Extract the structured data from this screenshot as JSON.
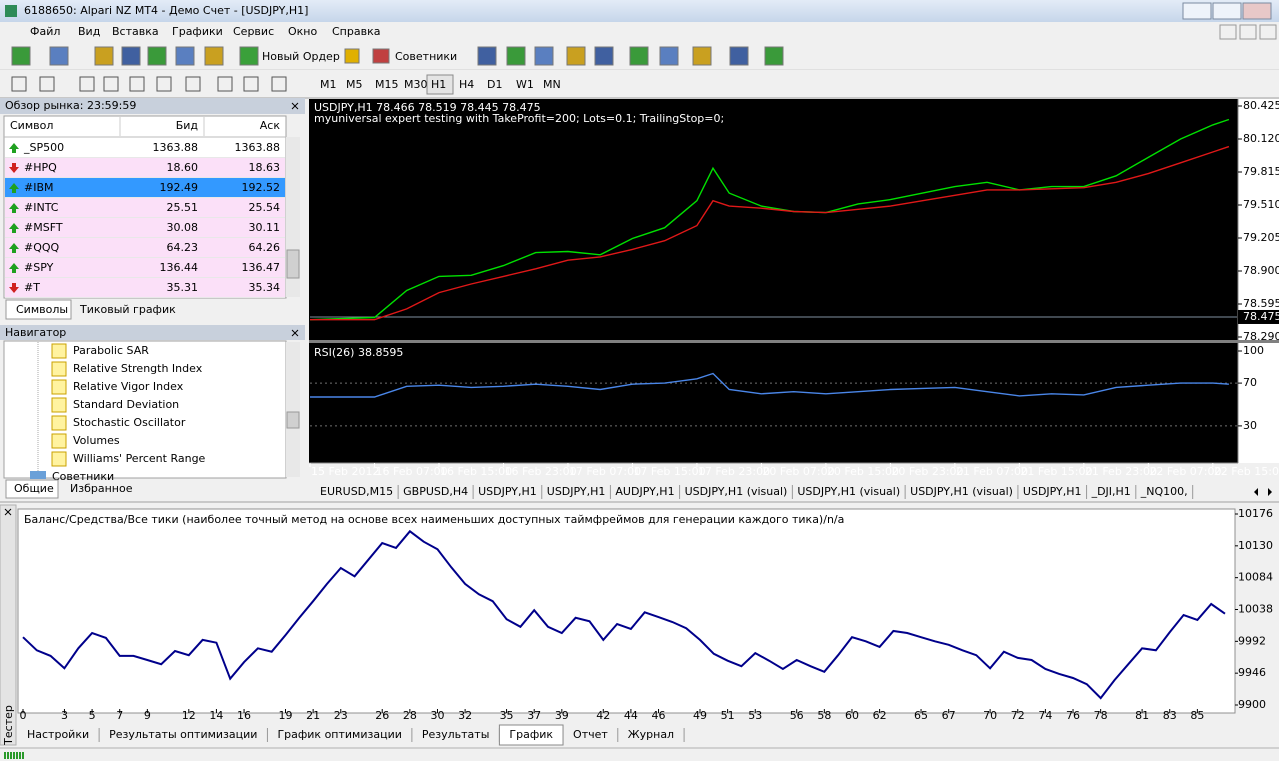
{
  "window": {
    "title": "6188650: Alpari NZ MT4 - Демо Счет - [USDJPY,H1]"
  },
  "menu": [
    "Файл",
    "Вид",
    "Вставка",
    "Графики",
    "Сервис",
    "Окно",
    "Справка"
  ],
  "toolbar": {
    "new_order": "Новый Ордер",
    "experts": "Советники",
    "timeframes": [
      "M1",
      "M5",
      "M15",
      "M30",
      "H1",
      "H4",
      "D1",
      "W1",
      "MN"
    ],
    "active_timeframe": "H1"
  },
  "market_watch": {
    "title": "Обзор рынка: 23:59:59",
    "columns": [
      "Символ",
      "Бид",
      "Аск"
    ],
    "rows": [
      {
        "symbol": "_SP500",
        "bid": "1363.88",
        "ask": "1363.88",
        "dir": "up",
        "muted": true
      },
      {
        "symbol": "#HPQ",
        "bid": "18.60",
        "ask": "18.63",
        "dir": "down"
      },
      {
        "symbol": "#IBM",
        "bid": "192.49",
        "ask": "192.52",
        "dir": "up",
        "selected": true
      },
      {
        "symbol": "#INTC",
        "bid": "25.51",
        "ask": "25.54",
        "dir": "up"
      },
      {
        "symbol": "#MSFT",
        "bid": "30.08",
        "ask": "30.11",
        "dir": "up"
      },
      {
        "symbol": "#QQQ",
        "bid": "64.23",
        "ask": "64.26",
        "dir": "up"
      },
      {
        "symbol": "#SPY",
        "bid": "136.44",
        "ask": "136.47",
        "dir": "up"
      },
      {
        "symbol": "#T",
        "bid": "35.31",
        "ask": "35.34",
        "dir": "down"
      }
    ],
    "tabs": [
      "Символы",
      "Тиковый график"
    ]
  },
  "navigator": {
    "title": "Навигатор",
    "items": [
      "Parabolic SAR",
      "Relative Strength Index",
      "Relative Vigor Index",
      "Standard Deviation",
      "Stochastic Oscillator",
      "Volumes",
      "Williams' Percent Range"
    ],
    "folder": "Советники",
    "tabs": [
      "Общие",
      "Избранное"
    ]
  },
  "chart_tabs": [
    "EURUSD,M15",
    "GBPUSD,H4",
    "USDJPY,H1",
    "USDJPY,H1",
    "AUDJPY,H1",
    "USDJPY,H1 (visual)",
    "USDJPY,H1 (visual)",
    "USDJPY,H1 (visual)",
    "USDJPY,H1",
    "_DJI,H1",
    "_NQ100,"
  ],
  "tester": {
    "label": "Тестер",
    "tabs": [
      "Настройки",
      "Результаты оптимизации",
      "График оптимизации",
      "Результаты",
      "График",
      "Отчет",
      "Журнал"
    ],
    "active_tab": "График"
  },
  "chart_data": [
    {
      "type": "line",
      "title": "USDJPY,H1  78.466 78.519 78.445 78.475",
      "subtitle": "myuniversal expert testing with TakeProfit=200; Lots=0.1; TrailingStop=0;",
      "x": [
        0,
        4,
        8,
        12,
        16,
        20,
        24,
        28,
        32,
        36,
        40,
        44,
        48,
        50,
        52,
        56,
        60,
        64,
        68,
        72,
        76,
        80,
        84,
        88,
        92,
        96,
        100,
        104,
        108,
        112,
        114
      ],
      "xlim": [
        0,
        115
      ],
      "xticks": [
        {
          "value": 0,
          "label": "15 Feb 2012"
        },
        {
          "value": 8,
          "label": "16 Feb 07:00"
        },
        {
          "value": 16,
          "label": "16 Feb 15:00"
        },
        {
          "value": 24,
          "label": "16 Feb 23:00"
        },
        {
          "value": 32,
          "label": "17 Feb 07:00"
        },
        {
          "value": 40,
          "label": "17 Feb 15:00"
        },
        {
          "value": 48,
          "label": "17 Feb 23:00"
        },
        {
          "value": 56,
          "label": "20 Feb 07:00"
        },
        {
          "value": 64,
          "label": "20 Feb 15:00"
        },
        {
          "value": 72,
          "label": "20 Feb 23:00"
        },
        {
          "value": 80,
          "label": "21 Feb 07:00"
        },
        {
          "value": 88,
          "label": "21 Feb 15:00"
        },
        {
          "value": 96,
          "label": "21 Feb 23:00"
        },
        {
          "value": 104,
          "label": "22 Feb 07:00"
        },
        {
          "value": 112,
          "label": "22 Feb 15:00"
        }
      ],
      "ylim": [
        78.29,
        80.425
      ],
      "yticks": [
        80.425,
        {
          "value": 80.12,
          "label": "80.120"
        },
        79.815,
        {
          "value": 79.51,
          "label": "79.510"
        },
        79.205,
        {
          "value": 78.9,
          "label": "78.900"
        },
        78.595,
        {
          "value": 78.29,
          "label": "78.290"
        }
      ],
      "current_price": 78.475,
      "series": [
        {
          "color": "#00e000",
          "values": [
            78.45,
            78.46,
            78.47,
            78.72,
            78.85,
            78.86,
            78.95,
            79.07,
            79.08,
            79.05,
            79.2,
            79.3,
            79.55,
            79.85,
            79.62,
            79.5,
            79.45,
            79.44,
            79.52,
            79.56,
            79.62,
            79.68,
            79.72,
            79.65,
            79.68,
            79.68,
            79.78,
            79.95,
            80.12,
            80.25,
            80.3
          ]
        },
        {
          "color": "#e01818",
          "values": [
            78.45,
            78.45,
            78.45,
            78.55,
            78.7,
            78.78,
            78.85,
            78.92,
            79.0,
            79.03,
            79.1,
            79.18,
            79.32,
            79.55,
            79.5,
            79.48,
            79.45,
            79.44,
            79.47,
            79.5,
            79.55,
            79.6,
            79.65,
            79.65,
            79.66,
            79.67,
            79.72,
            79.8,
            79.9,
            80.0,
            80.05
          ]
        }
      ]
    },
    {
      "type": "line",
      "title": "RSI(26) 38.8595",
      "x": [
        0,
        4,
        8,
        12,
        16,
        20,
        24,
        28,
        32,
        36,
        40,
        44,
        48,
        50,
        52,
        56,
        60,
        64,
        68,
        72,
        76,
        80,
        84,
        88,
        92,
        96,
        100,
        104,
        108,
        112,
        114
      ],
      "xlim": [
        0,
        115
      ],
      "ylim": [
        0,
        100
      ],
      "yticks": [
        100,
        70,
        30
      ],
      "levels": [
        70,
        30
      ],
      "series": [
        {
          "color": "#4a86e8",
          "values": [
            57,
            57,
            57,
            67,
            68,
            66,
            67,
            69,
            67,
            64,
            69,
            70,
            74,
            79,
            64,
            60,
            62,
            60,
            62,
            64,
            65,
            66,
            62,
            58,
            60,
            59,
            66,
            68,
            70,
            70,
            69
          ]
        }
      ]
    },
    {
      "type": "line",
      "subtitle": "Все тики (наиболее точный метод на основе всех наименьших доступных таймфреймов для генерации каждого тика)",
      "note": "n/a",
      "separator": " / ",
      "equity_label": "Средства",
      "equity_color": "#00a000",
      "xlim": [
        0,
        87
      ],
      "xticks": [
        0,
        3,
        5,
        7,
        9,
        12,
        14,
        16,
        19,
        21,
        23,
        26,
        28,
        30,
        32,
        35,
        37,
        39,
        42,
        44,
        46,
        49,
        51,
        53,
        56,
        58,
        60,
        62,
        65,
        67,
        70,
        72,
        74,
        76,
        78,
        81,
        83,
        85
      ],
      "ylim": [
        9900,
        10176
      ],
      "yticks": [
        10176,
        10130,
        10084,
        10038,
        9992,
        9946,
        9900
      ],
      "series": [
        {
          "name": "Баланс",
          "color": "#00008b",
          "values": [
            9998,
            9979,
            9971,
            9953,
            9982,
            10004,
            9997,
            9971,
            9971,
            9965,
            9959,
            9978,
            9972,
            9994,
            9990,
            9938,
            9962,
            9982,
            9977,
            10001,
            10026,
            10050,
            10075,
            10098,
            10086,
            10110,
            10134,
            10127,
            10151,
            10136,
            10125,
            10099,
            10075,
            10060,
            10050,
            10024,
            10013,
            10037,
            10013,
            10004,
            10026,
            10021,
            9994,
            10017,
            10010,
            10034,
            10027,
            10020,
            10011,
            9994,
            9974,
            9964,
            9956,
            9975,
            9964,
            9952,
            9965,
            9956,
            9948,
            9972,
            9998,
            9992,
            9984,
            10007,
            10004,
            9998,
            9992,
            9987,
            9979,
            9972,
            9953,
            9977,
            9968,
            9965,
            9952,
            9945,
            9939,
            9930,
            9910,
            9936,
            9959,
            9982,
            9979,
            10005,
            10030,
            10023,
            10046,
            10032
          ]
        }
      ]
    }
  ]
}
